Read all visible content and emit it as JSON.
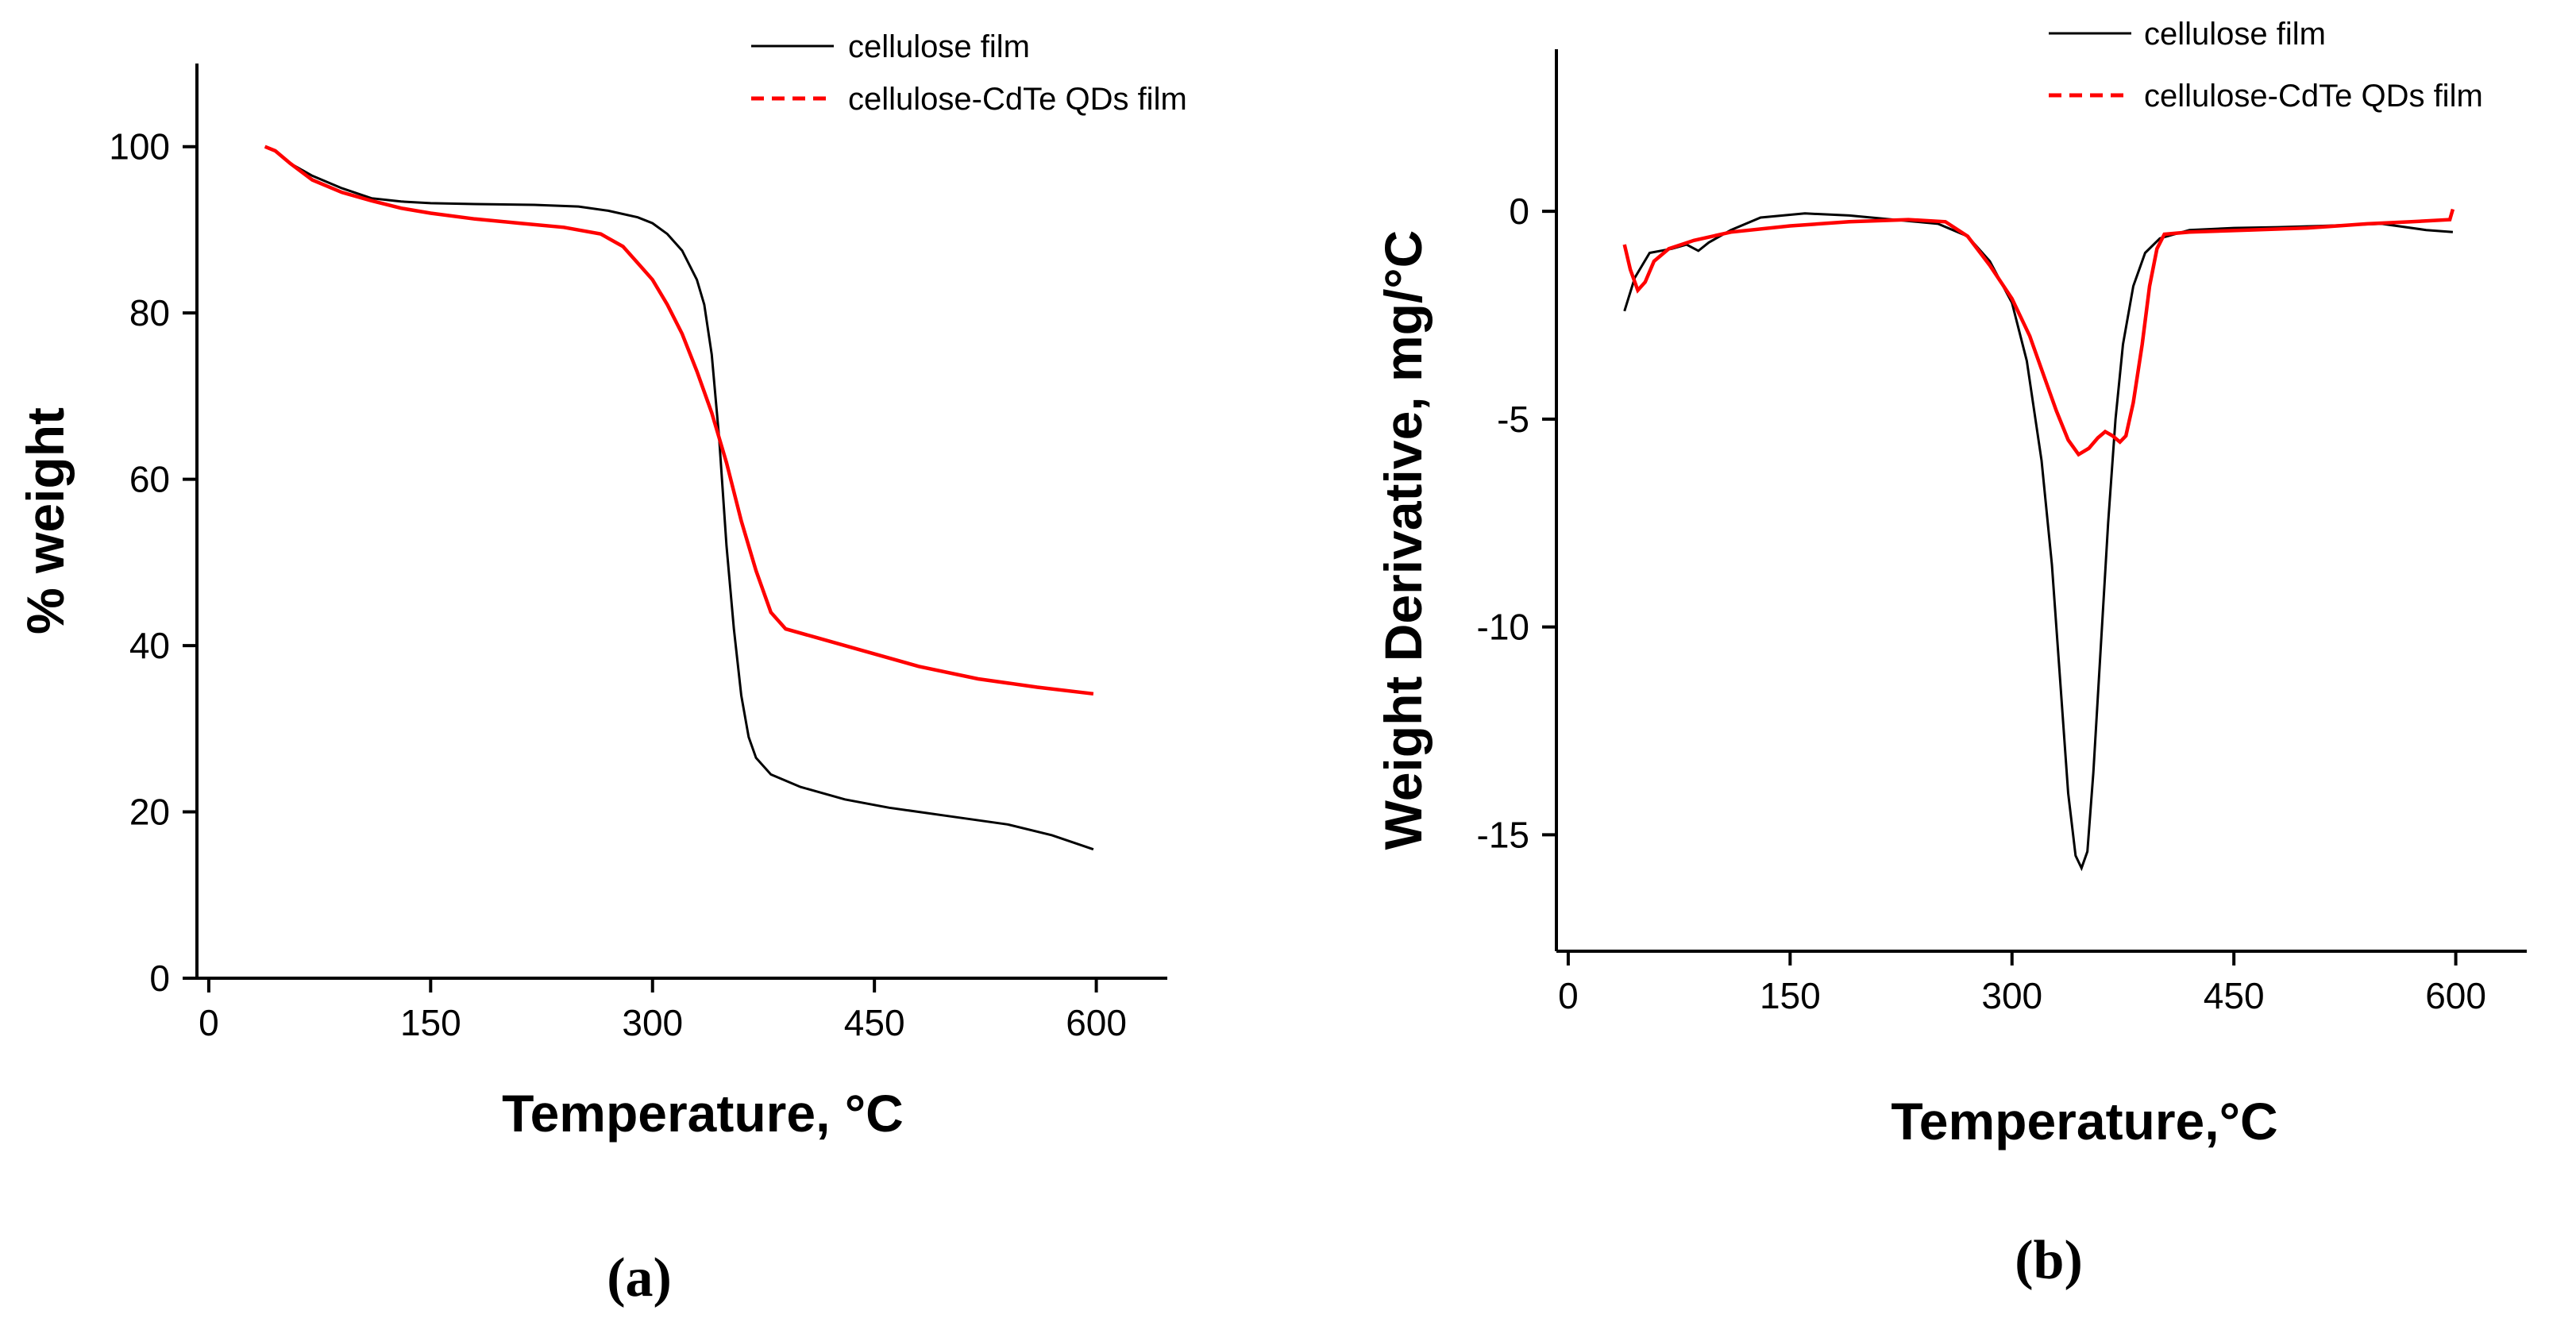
{
  "chart_data": [
    {
      "type": "line",
      "panel_label": "(a)",
      "xlabel": "Temperature, °C",
      "ylabel": "% weight",
      "xlim": [
        -8,
        648
      ],
      "ylim": [
        0,
        110
      ],
      "xticks": [
        0,
        150,
        300,
        450,
        600
      ],
      "yticks": [
        0,
        20,
        40,
        60,
        80,
        100
      ],
      "legend_position": "top-right",
      "series": [
        {
          "name": "cellulose film",
          "color": "#000000",
          "style": "solid",
          "points": [
            [
              38,
              100
            ],
            [
              45,
              99.5
            ],
            [
              55,
              98
            ],
            [
              70,
              96.5
            ],
            [
              90,
              95
            ],
            [
              110,
              93.8
            ],
            [
              130,
              93.4
            ],
            [
              150,
              93.2
            ],
            [
              180,
              93.1
            ],
            [
              220,
              93
            ],
            [
              250,
              92.8
            ],
            [
              270,
              92.3
            ],
            [
              290,
              91.5
            ],
            [
              300,
              90.8
            ],
            [
              310,
              89.5
            ],
            [
              320,
              87.5
            ],
            [
              330,
              84
            ],
            [
              335,
              81
            ],
            [
              340,
              75
            ],
            [
              345,
              65
            ],
            [
              350,
              52
            ],
            [
              355,
              42
            ],
            [
              360,
              34
            ],
            [
              365,
              29
            ],
            [
              370,
              26.5
            ],
            [
              380,
              24.5
            ],
            [
              400,
              23
            ],
            [
              430,
              21.5
            ],
            [
              460,
              20.5
            ],
            [
              500,
              19.5
            ],
            [
              540,
              18.5
            ],
            [
              570,
              17.2
            ],
            [
              598,
              15.5
            ]
          ]
        },
        {
          "name": "cellulose-CdTe QDs film",
          "color": "#ff0000",
          "style": "dashed",
          "points": [
            [
              38,
              100
            ],
            [
              45,
              99.5
            ],
            [
              55,
              98
            ],
            [
              70,
              96
            ],
            [
              90,
              94.5
            ],
            [
              110,
              93.5
            ],
            [
              130,
              92.6
            ],
            [
              150,
              92
            ],
            [
              180,
              91.3
            ],
            [
              210,
              90.8
            ],
            [
              240,
              90.3
            ],
            [
              265,
              89.5
            ],
            [
              280,
              88
            ],
            [
              290,
              86
            ],
            [
              300,
              84
            ],
            [
              310,
              81
            ],
            [
              320,
              77.5
            ],
            [
              330,
              73
            ],
            [
              340,
              68
            ],
            [
              350,
              62
            ],
            [
              360,
              55
            ],
            [
              370,
              49
            ],
            [
              380,
              44
            ],
            [
              390,
              42
            ],
            [
              410,
              41
            ],
            [
              440,
              39.5
            ],
            [
              480,
              37.5
            ],
            [
              520,
              36
            ],
            [
              560,
              35
            ],
            [
              598,
              34.2
            ]
          ]
        }
      ]
    },
    {
      "type": "line",
      "panel_label": "(b)",
      "xlabel": "Temperature,°C",
      "ylabel": "Weight Derivative, mg/°C",
      "xlim": [
        -8,
        648
      ],
      "ylim": [
        -17.8,
        3.9
      ],
      "xticks": [
        0,
        150,
        300,
        450,
        600
      ],
      "yticks": [
        0,
        -5,
        -10,
        -15
      ],
      "legend_position": "top-right",
      "series": [
        {
          "name": "cellulose film",
          "color": "#000000",
          "style": "solid",
          "points": [
            [
              38,
              -2.4
            ],
            [
              45,
              -1.6
            ],
            [
              55,
              -1.0
            ],
            [
              70,
              -0.9
            ],
            [
              80,
              -0.8
            ],
            [
              88,
              -0.95
            ],
            [
              95,
              -0.75
            ],
            [
              110,
              -0.45
            ],
            [
              130,
              -0.15
            ],
            [
              160,
              -0.05
            ],
            [
              190,
              -0.1
            ],
            [
              220,
              -0.2
            ],
            [
              250,
              -0.3
            ],
            [
              270,
              -0.6
            ],
            [
              285,
              -1.2
            ],
            [
              300,
              -2.2
            ],
            [
              310,
              -3.6
            ],
            [
              320,
              -6
            ],
            [
              327,
              -8.5
            ],
            [
              333,
              -11.5
            ],
            [
              338,
              -14
            ],
            [
              343,
              -15.5
            ],
            [
              347,
              -15.8
            ],
            [
              351,
              -15.4
            ],
            [
              355,
              -13.5
            ],
            [
              360,
              -10.5
            ],
            [
              365,
              -7.5
            ],
            [
              370,
              -5
            ],
            [
              375,
              -3.2
            ],
            [
              382,
              -1.8
            ],
            [
              390,
              -1.0
            ],
            [
              400,
              -0.65
            ],
            [
              420,
              -0.45
            ],
            [
              450,
              -0.4
            ],
            [
              480,
              -0.38
            ],
            [
              510,
              -0.35
            ],
            [
              550,
              -0.3
            ],
            [
              580,
              -0.45
            ],
            [
              598,
              -0.5
            ]
          ]
        },
        {
          "name": "cellulose-CdTe QDs film",
          "color": "#ff0000",
          "style": "dashed",
          "points": [
            [
              38,
              -0.8
            ],
            [
              42,
              -1.4
            ],
            [
              47,
              -1.9
            ],
            [
              52,
              -1.7
            ],
            [
              58,
              -1.2
            ],
            [
              68,
              -0.9
            ],
            [
              85,
              -0.7
            ],
            [
              110,
              -0.5
            ],
            [
              150,
              -0.35
            ],
            [
              190,
              -0.25
            ],
            [
              230,
              -0.2
            ],
            [
              255,
              -0.25
            ],
            [
              270,
              -0.6
            ],
            [
              285,
              -1.3
            ],
            [
              300,
              -2.1
            ],
            [
              312,
              -3.0
            ],
            [
              322,
              -4.0
            ],
            [
              330,
              -4.8
            ],
            [
              338,
              -5.5
            ],
            [
              345,
              -5.85
            ],
            [
              352,
              -5.7
            ],
            [
              358,
              -5.45
            ],
            [
              363,
              -5.3
            ],
            [
              368,
              -5.4
            ],
            [
              373,
              -5.55
            ],
            [
              377,
              -5.4
            ],
            [
              382,
              -4.6
            ],
            [
              388,
              -3.2
            ],
            [
              393,
              -1.8
            ],
            [
              398,
              -0.9
            ],
            [
              403,
              -0.55
            ],
            [
              420,
              -0.5
            ],
            [
              460,
              -0.45
            ],
            [
              500,
              -0.4
            ],
            [
              540,
              -0.3
            ],
            [
              570,
              -0.25
            ],
            [
              596,
              -0.2
            ],
            [
              598,
              0.05
            ]
          ]
        }
      ]
    }
  ]
}
